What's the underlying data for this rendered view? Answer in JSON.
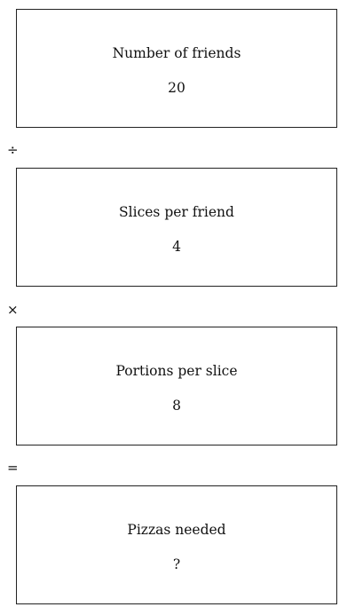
{
  "steps": [
    {
      "label": "Number of friends",
      "value": "20"
    },
    {
      "label": "Slices per friend",
      "value": "4"
    },
    {
      "label": "Portions per slice",
      "value": "8"
    },
    {
      "label": "Pizzas needed",
      "value": "?"
    }
  ],
  "operators": [
    "÷",
    "×",
    "="
  ]
}
